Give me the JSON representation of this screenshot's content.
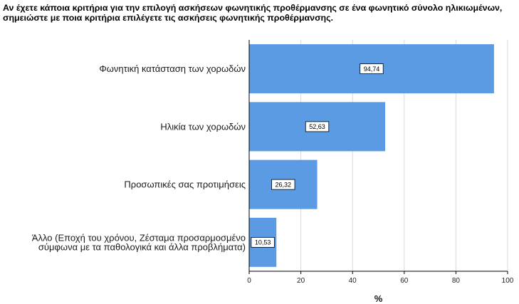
{
  "chart_data": {
    "type": "bar",
    "orientation": "horizontal",
    "title": "Αν έχετε κάποια κριτήρια για την επιλογή ασκήσεων φωνητικής προθέρμανσης σε ένα φωνητικό σύνολο ηλικιωμένων, σημειώστε με ποια κριτήρια επιλέγετε τις ασκήσεις φωνητικής προθέρμανσης.",
    "categories": [
      [
        "Φωνητική κατάσταση των χορωδών"
      ],
      [
        "Ηλικία των χορωδών"
      ],
      [
        "Προσωπικές σας προτιμήσεις"
      ],
      [
        "Άλλο (Εποχή του χρόνου, Ζέσταμα προσαρμοσμένο",
        "σύμφωνα με τα παθολογικά και άλλα προβλήματα)"
      ]
    ],
    "values": [
      94.74,
      52.63,
      26.32,
      10.53
    ],
    "data_labels": [
      "94,74",
      "52,63",
      "26,32",
      "10,53"
    ],
    "xlabel": "%",
    "ylabel": "",
    "xlim": [
      0,
      100
    ],
    "xticks": [
      0,
      20,
      40,
      60,
      80,
      100
    ],
    "grid": "vertical",
    "bar_color": "#5b9be4",
    "grid_color": "#d9d9d9"
  }
}
